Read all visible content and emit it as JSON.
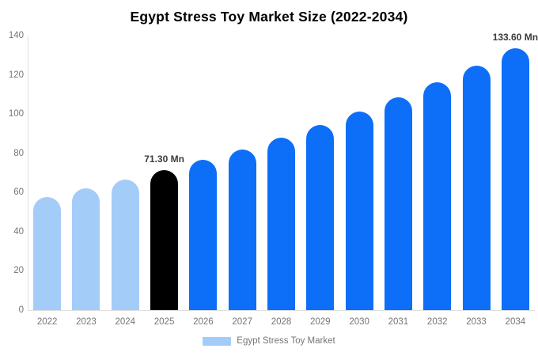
{
  "chart_data": {
    "type": "bar",
    "title": "Egypt Stress Toy Market Size (2022-2034)",
    "unit": "Mn",
    "xlabel": "",
    "ylabel": "",
    "categories": [
      "2022",
      "2023",
      "2024",
      "2025",
      "2026",
      "2027",
      "2028",
      "2029",
      "2030",
      "2031",
      "2032",
      "2033",
      "2034"
    ],
    "series": [
      {
        "name": "Egypt Stress Toy Market",
        "values": [
          57.8,
          62.0,
          66.5,
          71.3,
          76.5,
          82.0,
          87.9,
          94.3,
          101.1,
          108.4,
          116.2,
          124.6,
          133.6
        ]
      }
    ],
    "bar_colors": [
      "#a3ccf8",
      "#a3ccf8",
      "#a3ccf8",
      "#000000",
      "#0d6ef7",
      "#0d6ef7",
      "#0d6ef7",
      "#0d6ef7",
      "#0d6ef7",
      "#0d6ef7",
      "#0d6ef7",
      "#0d6ef7",
      "#0d6ef7"
    ],
    "data_labels": [
      {
        "category": "2025",
        "index": 3,
        "text": "71.30 Mn"
      },
      {
        "category": "2034",
        "index": 12,
        "text": "133.60 Mn"
      }
    ],
    "ylim": [
      0,
      140
    ],
    "yticks": [
      0,
      20,
      40,
      60,
      80,
      100,
      120,
      140
    ],
    "grid": false,
    "legend": {
      "position": "bottom",
      "label": "Egypt Stress Toy Market",
      "swatch_color": "#a3ccf8"
    },
    "colors": {
      "bar_default": "#0d6ef7",
      "bar_past": "#a3ccf8",
      "bar_highlight": "#000000",
      "axis_line": "#e0e0e0",
      "axis_text": "#757575",
      "value_label_text": "#3b3b3b",
      "title_text": "#000000",
      "background": "#ffffff"
    }
  }
}
